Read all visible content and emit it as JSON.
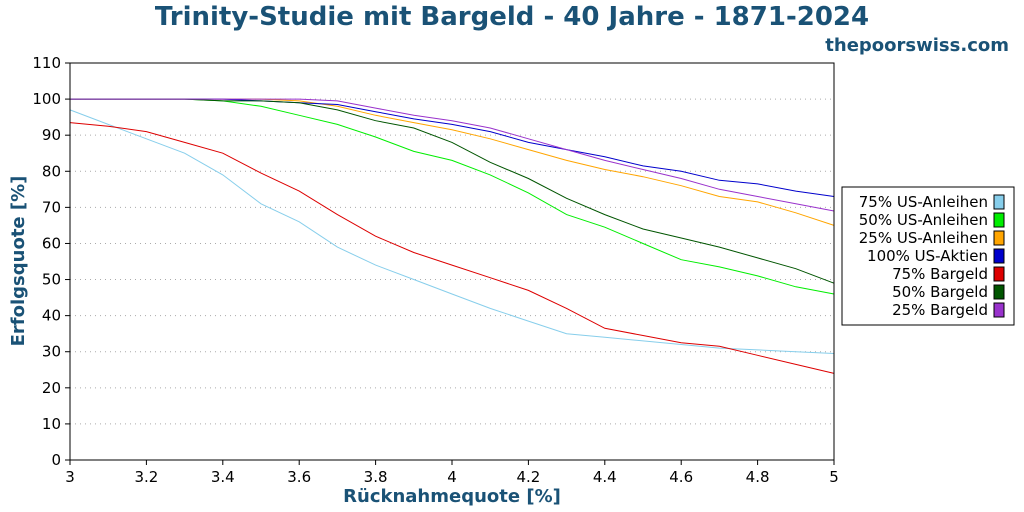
{
  "chart_data": {
    "type": "line",
    "title": "Trinity-Studie mit Bargeld - 40 Jahre - 1871-2024",
    "subtitle": "thepoorswiss.com",
    "xlabel": "Rücknahmequote [%]",
    "ylabel": "Erfolgsquote [%]",
    "xlim": [
      3,
      5
    ],
    "ylim": [
      0,
      110
    ],
    "x_ticks": [
      "3",
      "3.2",
      "3.4",
      "3.6",
      "3.8",
      "4",
      "4.2",
      "4.4",
      "4.6",
      "4.8",
      "5"
    ],
    "y_ticks": [
      "0",
      "10",
      "20",
      "30",
      "40",
      "50",
      "60",
      "70",
      "80",
      "90",
      "100",
      "110"
    ],
    "grid": true,
    "legend_position": "right",
    "x": [
      3.0,
      3.1,
      3.2,
      3.3,
      3.4,
      3.5,
      3.6,
      3.7,
      3.8,
      3.9,
      4.0,
      4.1,
      4.2,
      4.3,
      4.4,
      4.5,
      4.6,
      4.7,
      4.8,
      4.9,
      5.0
    ],
    "series": [
      {
        "name": "75% US-Anleihen",
        "color": "#87ceeb",
        "values": [
          97,
          93,
          89,
          85,
          79,
          71,
          66,
          59,
          54,
          50,
          46,
          42,
          38.5,
          35,
          34,
          33,
          32,
          31,
          30.5,
          30,
          29.5
        ]
      },
      {
        "name": "50% US-Anleihen",
        "color": "#00ee00",
        "values": [
          100,
          100,
          100,
          100,
          99.5,
          98,
          95.5,
          93,
          89.5,
          85.5,
          83,
          79,
          74,
          68,
          64.5,
          60,
          55.5,
          53.5,
          51,
          48,
          46
        ]
      },
      {
        "name": "25% US-Anleihen",
        "color": "#ffa500",
        "values": [
          100,
          100,
          100,
          100,
          100,
          100,
          99.5,
          98,
          95.5,
          93.5,
          91.5,
          89,
          86,
          83,
          80.5,
          78.5,
          76,
          73,
          71.5,
          68.5,
          65
        ]
      },
      {
        "name": "100% US-Aktien",
        "color": "#0000cc",
        "values": [
          100,
          100,
          100,
          100,
          100,
          99.5,
          99,
          98.5,
          96.5,
          94.5,
          93,
          91,
          88,
          86,
          84,
          81.5,
          80,
          77.5,
          76.5,
          74.5,
          73
        ]
      },
      {
        "name": "75% Bargeld",
        "color": "#dd0000",
        "values": [
          93.5,
          92.5,
          91,
          88,
          85,
          79.5,
          74.5,
          68,
          62,
          57.5,
          54,
          50.5,
          47,
          42,
          36.5,
          34.5,
          32.5,
          31.5,
          29,
          26.5,
          24
        ]
      },
      {
        "name": "50% Bargeld",
        "color": "#005500",
        "values": [
          100,
          100,
          100,
          100,
          99.5,
          99.5,
          99,
          97,
          94,
          92,
          88,
          82.5,
          78,
          72.5,
          68,
          64,
          61.5,
          59,
          56,
          53,
          49
        ]
      },
      {
        "name": "25% Bargeld",
        "color": "#9932cc",
        "values": [
          100,
          100,
          100,
          100,
          100,
          100,
          100,
          99.5,
          97.5,
          95.5,
          94,
          92,
          89,
          86,
          83,
          80.5,
          78,
          75,
          73,
          71,
          69
        ]
      }
    ]
  }
}
